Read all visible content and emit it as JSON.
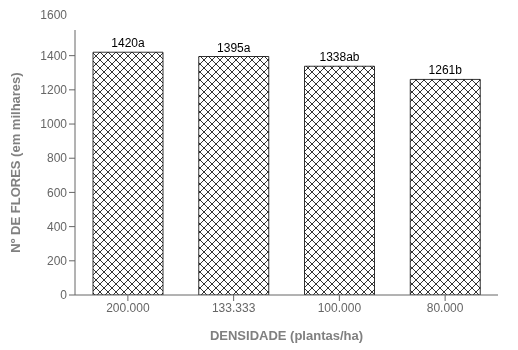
{
  "chart_data": {
    "type": "bar",
    "categories": [
      "200.000",
      "133.333",
      "100.000",
      "80.000"
    ],
    "values": [
      1420,
      1395,
      1338,
      1261
    ],
    "value_labels": [
      "1420a",
      "1395a",
      "1338ab",
      "1261b"
    ],
    "data_labels": true,
    "xlabel": "DENSIDADE (plantas/ha)",
    "ylabel": "Nº DE FLORES (em milhares)",
    "ylim": [
      0,
      1550
    ],
    "yticks": [
      0,
      200,
      400,
      600,
      800,
      1000,
      1200,
      1400
    ],
    "annotations": [
      {
        "text": "1600"
      }
    ],
    "color": "#ffffff",
    "grid": false
  }
}
